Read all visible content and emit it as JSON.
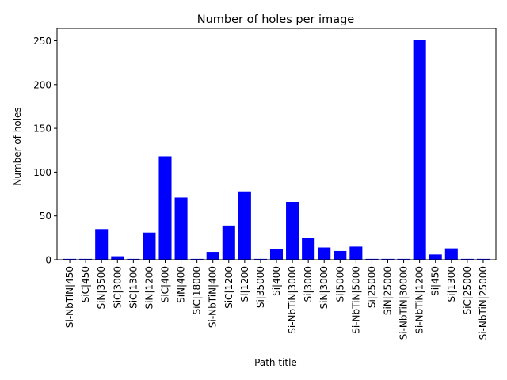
{
  "chart_data": {
    "type": "bar",
    "title": "Number of holes per image",
    "xlabel": "Path title",
    "ylabel": "Number of holes",
    "ylim": [
      0,
      264
    ],
    "yticks": [
      0,
      50,
      100,
      150,
      200,
      250
    ],
    "grid": false,
    "bar_color": "#0000ff",
    "categories": [
      "Si-NbTiN|450",
      "SiC|450",
      "SiN|3500",
      "SiC|3000",
      "SiC|1300",
      "SiN|1200",
      "SiC|400",
      "SiN|400",
      "SiC|18000",
      "Si-NbTiN|400",
      "SiC|1200",
      "Si|1200",
      "Si|35000",
      "Si|400",
      "Si-NbTiN|3000",
      "Si|3000",
      "SiN|3000",
      "Si|5000",
      "Si-NbTiN|5000",
      "Si|25000",
      "SiN|25000",
      "Si-NbTiN|30000",
      "Si-NbTiN|1200",
      "Si|450",
      "Si|1300",
      "SiC|25000",
      "Si-NbTiN|25000"
    ],
    "values": [
      1,
      1,
      35,
      4,
      1,
      31,
      118,
      71,
      1,
      9,
      39,
      78,
      1,
      12,
      66,
      25,
      14,
      10,
      15,
      1,
      1,
      1,
      251,
      6,
      13,
      1,
      1
    ]
  }
}
